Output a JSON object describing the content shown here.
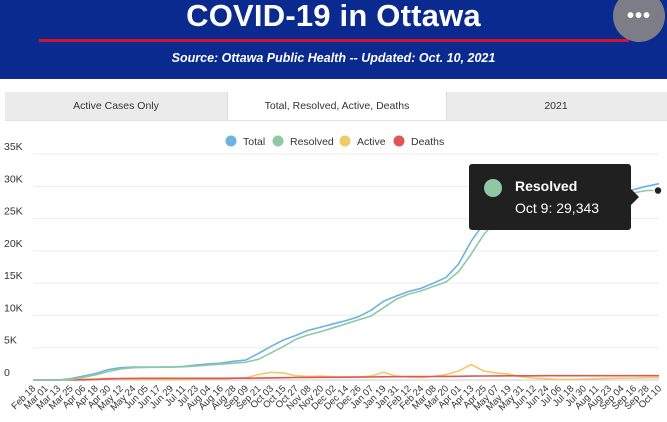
{
  "header": {
    "title": "COVID-19 in Ottawa",
    "subtitle": "Source:  Ottawa Public Health -- Updated:  Oct. 10, 2021",
    "menu_icon": "more-horizontal-icon",
    "menu_glyph": "•••"
  },
  "tabs": [
    {
      "label": "Active Cases Only",
      "active": false
    },
    {
      "label": "Total, Resolved, Active, Deaths",
      "active": true
    },
    {
      "label": "2021",
      "active": false
    }
  ],
  "tooltip": {
    "series": "Resolved",
    "text": "Oct 9: 29,343",
    "color": "#8fc9a3"
  },
  "chart_data": {
    "type": "line",
    "xlabels": [
      "Feb 18",
      "Mar 01",
      "Mar 13",
      "Mar 25",
      "Apr 06",
      "Apr 18",
      "Apr 30",
      "May 12",
      "May 24",
      "Jun 05",
      "Jun 17",
      "Jun 29",
      "Jul 11",
      "Jul 23",
      "Aug 04",
      "Aug 16",
      "Aug 28",
      "Sep 09",
      "Sep 21",
      "Oct 03",
      "Oct 15",
      "Oct 27",
      "Nov 08",
      "Nov 20",
      "Dec 02",
      "Dec 14",
      "Dec 26",
      "Jan 07",
      "Jan 19",
      "Jan 31",
      "Feb 12",
      "Feb 24",
      "Mar 08",
      "Mar 20",
      "Apr 01",
      "Apr 13",
      "Apr 25",
      "May 07",
      "May 19",
      "May 31",
      "Jun 12",
      "Jun 24",
      "Jul 06",
      "Jul 18",
      "Jul 30",
      "Aug 11",
      "Aug 23",
      "Sep 04",
      "Sep 16",
      "Sep 28",
      "Oct 10"
    ],
    "yticks": [
      "35K",
      "30K",
      "25K",
      "20K",
      "15K",
      "10K",
      "5K",
      "0"
    ],
    "ylim": [
      0,
      35000
    ],
    "legend_position": "top",
    "series": [
      {
        "name": "Total",
        "color": "#6db3e1",
        "values": [
          0,
          0,
          0,
          200,
          600,
          1000,
          1600,
          1900,
          2000,
          2000,
          2000,
          2000,
          2100,
          2300,
          2500,
          2600,
          2900,
          3100,
          4100,
          5200,
          6200,
          6900,
          7700,
          8200,
          8700,
          9200,
          9800,
          10800,
          12200,
          13000,
          13700,
          14200,
          15000,
          15900,
          18000,
          21500,
          24200,
          26000,
          26800,
          27300,
          27500,
          27700,
          27800,
          27900,
          28100,
          28300,
          28600,
          29000,
          29500,
          30000,
          30400
        ]
      },
      {
        "name": "Resolved",
        "color": "#8fc9a3",
        "values": [
          0,
          0,
          0,
          100,
          400,
          800,
          1300,
          1700,
          1900,
          1950,
          1980,
          2000,
          2050,
          2150,
          2300,
          2450,
          2600,
          2750,
          3200,
          4200,
          5200,
          6300,
          7000,
          7500,
          8100,
          8700,
          9300,
          9900,
          11200,
          12500,
          13300,
          13800,
          14500,
          15200,
          16800,
          19500,
          22500,
          24700,
          26000,
          26700,
          27100,
          27300,
          27500,
          27600,
          27800,
          28000,
          28300,
          28600,
          29000,
          29343,
          29343
        ]
      },
      {
        "name": "Active",
        "color": "#f0c96a",
        "values": [
          0,
          0,
          0,
          100,
          150,
          200,
          250,
          200,
          100,
          60,
          40,
          30,
          40,
          120,
          180,
          120,
          250,
          330,
          850,
          1200,
          1100,
          650,
          550,
          600,
          500,
          450,
          450,
          600,
          1200,
          600,
          450,
          400,
          550,
          850,
          1400,
          2400,
          1400,
          1100,
          900,
          500,
          300,
          200,
          100,
          100,
          150,
          200,
          250,
          280,
          300,
          350,
          350
        ]
      },
      {
        "name": "Deaths",
        "color": "#e05555",
        "values": [
          0,
          0,
          0,
          5,
          25,
          80,
          190,
          230,
          250,
          260,
          265,
          265,
          266,
          267,
          268,
          270,
          272,
          275,
          290,
          320,
          350,
          380,
          400,
          415,
          425,
          440,
          450,
          470,
          490,
          510,
          520,
          530,
          540,
          555,
          570,
          600,
          620,
          640,
          650,
          655,
          658,
          660,
          661,
          662,
          663,
          664,
          666,
          668,
          670,
          672,
          672
        ]
      }
    ]
  }
}
